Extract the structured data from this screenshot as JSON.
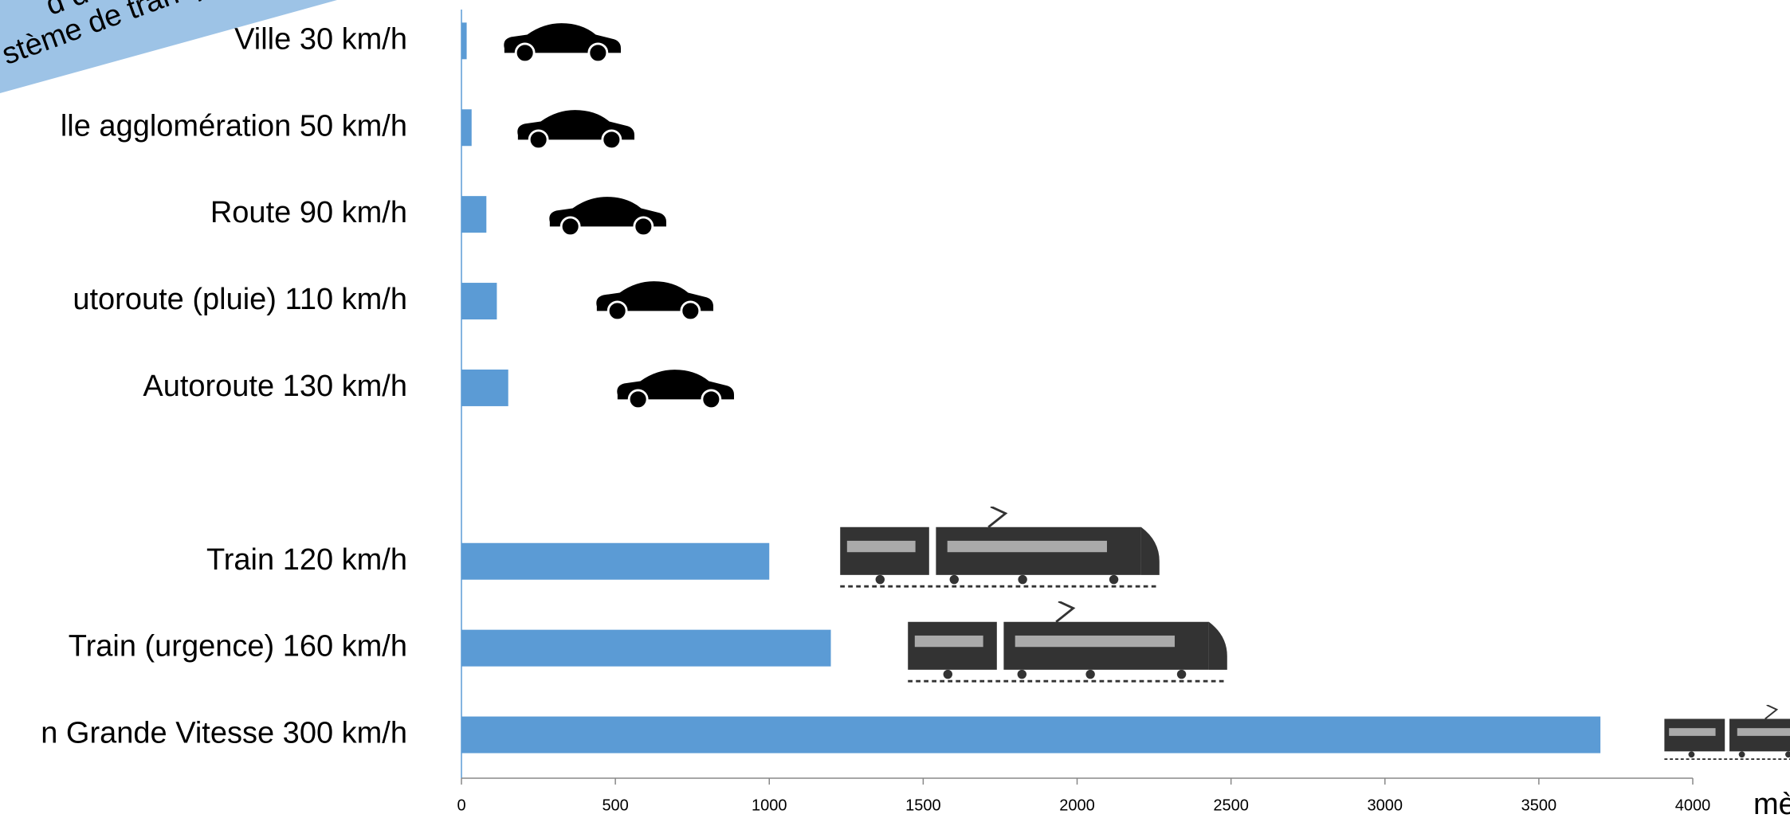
{
  "chart_data": {
    "type": "barh",
    "annotations": [
      "d de fo",
      "stème de transpo"
    ],
    "x_label": "mè",
    "categories": [
      "Ville 30 km/h",
      "lle agglomération 50 km/h",
      "Route 90 km/h",
      "utoroute (pluie) 110 km/h",
      "Autoroute 130 km/h",
      null,
      "Train 120 km/h",
      "Train (urgence) 160 km/h",
      "n Grande Vitesse 300 km/h"
    ],
    "values": [
      17,
      33,
      81,
      115,
      152,
      null,
      1000,
      1200,
      3700
    ],
    "color": "#5b9bd5",
    "xlim": [
      0,
      4000
    ],
    "xticks": [
      0,
      500,
      1000,
      1500,
      2000,
      2500,
      3000,
      3500,
      4000
    ]
  }
}
